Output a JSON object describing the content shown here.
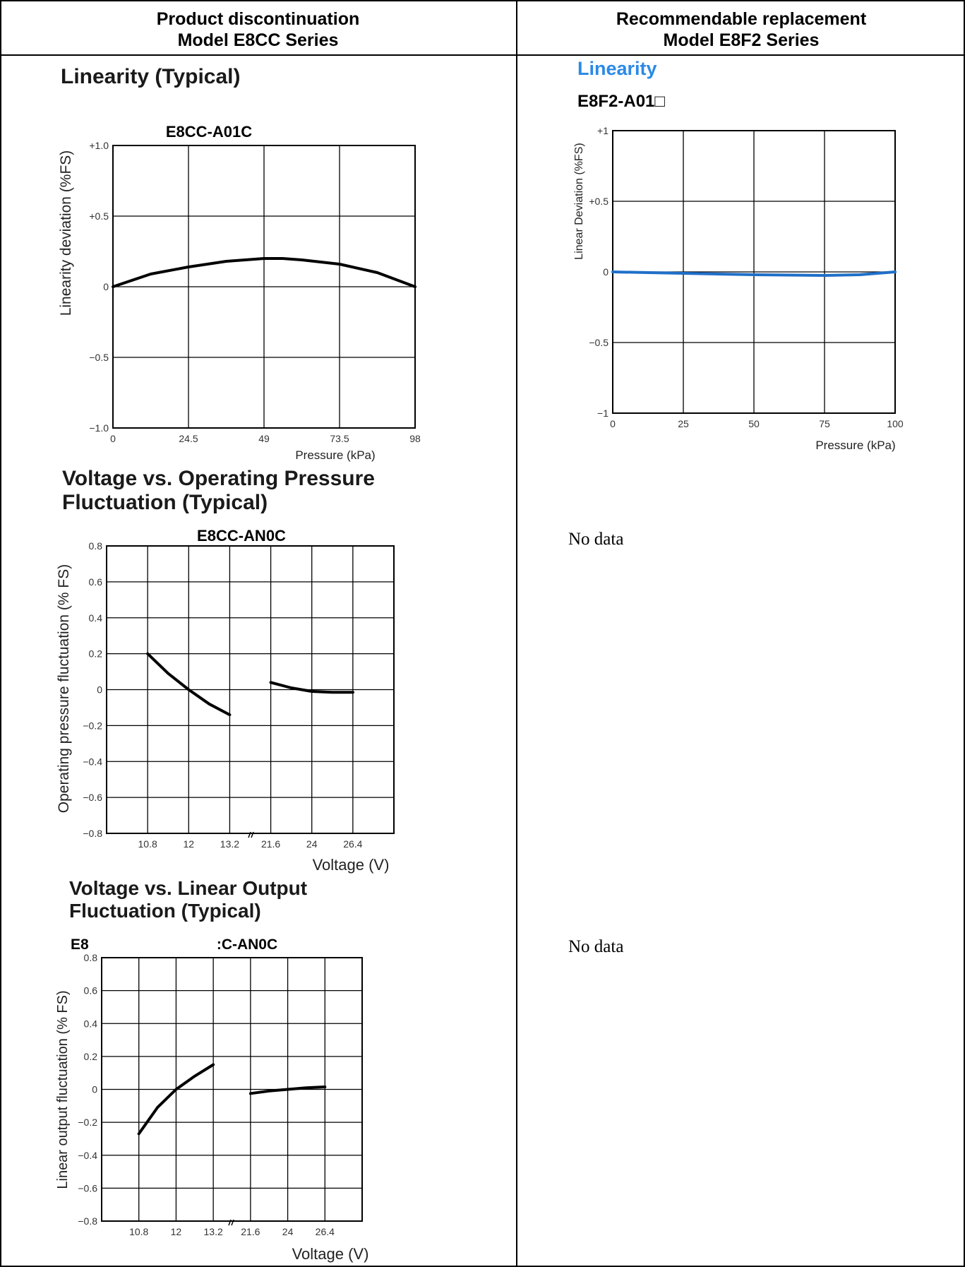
{
  "header": {
    "left_line1": "Product discontinuation",
    "left_line2": "Model E8CC Series",
    "right_line1": "Recommendable replacement",
    "right_line2": "Model E8F2 Series"
  },
  "left": {
    "linearity_title": "Linearity (Typical)",
    "voltage_pressure_title_1": "Voltage vs. Operating Pressure",
    "voltage_pressure_title_2": "Fluctuation (Typical)",
    "voltage_output_title_1": "Voltage vs. Linear Output",
    "voltage_output_title_2": "Fluctuation (Typical)"
  },
  "right": {
    "linearity_title": "Linearity",
    "model": "E8F2-A01□",
    "no_data_1": "No data",
    "no_data_2": "No data"
  },
  "colors": {
    "accent_blue": "#2b8ae6",
    "line_blue": "#1f6fc8"
  },
  "chart_data": [
    {
      "id": "e8cc-linearity",
      "type": "line",
      "title": "E8CC-A01C",
      "xlabel": "Pressure (kPa)",
      "ylabel": "Linearity deviation (%FS)",
      "xlim": [
        0,
        98
      ],
      "ylim": [
        -1.0,
        1.0
      ],
      "x_ticks": [
        "0",
        "24.5",
        "49",
        "73.5",
        "98"
      ],
      "y_ticks": [
        "+1.0",
        "+0.5",
        "0",
        "−0.5",
        "−1.0"
      ],
      "grid": true,
      "series": [
        {
          "x": [
            0,
            12.25,
            24.5,
            36.75,
            49,
            55,
            61.25,
            73.5,
            85.75,
            98
          ],
          "values": [
            0,
            0.09,
            0.14,
            0.18,
            0.2,
            0.2,
            0.19,
            0.16,
            0.1,
            0
          ]
        }
      ]
    },
    {
      "id": "e8f2-linearity",
      "type": "line",
      "title": "",
      "xlabel": "Pressure (kPa)",
      "ylabel": "Linear Deviation (%FS)",
      "xlim": [
        0,
        100
      ],
      "ylim": [
        -1,
        1
      ],
      "x_ticks": [
        "0",
        "25",
        "50",
        "75",
        "100"
      ],
      "y_ticks": [
        "+1",
        "+0.5",
        "0",
        "−0.5",
        "−1"
      ],
      "grid": true,
      "series": [
        {
          "x": [
            0,
            25,
            50,
            75,
            87.5,
            100
          ],
          "values": [
            0,
            -0.01,
            -0.02,
            -0.025,
            -0.02,
            0
          ]
        }
      ]
    },
    {
      "id": "e8cc-voltage-pressure",
      "type": "line",
      "title": "E8CC-AN0C",
      "xlabel": "Voltage (V)",
      "ylabel": "Operating pressure fluctuation (% FS)",
      "x_categories": [
        "10.8",
        "12",
        "13.2",
        "21.6",
        "24",
        "26.4"
      ],
      "ylim": [
        -0.8,
        0.8
      ],
      "y_ticks": [
        "0.8",
        "0.6",
        "0.4",
        "0.2",
        "0",
        "−0.2",
        "−0.4",
        "−0.6",
        "−0.8"
      ],
      "grid": true,
      "series": [
        {
          "x": [
            10.8,
            11.4,
            12,
            12.6,
            13.2
          ],
          "values": [
            0.2,
            0.09,
            0,
            -0.08,
            -0.14
          ]
        },
        {
          "x": [
            21.6,
            22.8,
            24,
            25.2,
            26.4
          ],
          "values": [
            0.04,
            0.01,
            -0.01,
            -0.015,
            -0.015
          ]
        }
      ]
    },
    {
      "id": "e8cc-voltage-output",
      "type": "line",
      "title_left": "E8",
      "title_right": ":C-AN0C",
      "xlabel": "Voltage (V)",
      "ylabel": "Linear output fluctuation (% FS)",
      "x_categories": [
        "10.8",
        "12",
        "13.2",
        "21.6",
        "24",
        "26.4"
      ],
      "ylim": [
        -0.8,
        0.8
      ],
      "y_ticks": [
        "0.8",
        "0.6",
        "0.4",
        "0.2",
        "0",
        "−0.2",
        "−0.4",
        "−0.6",
        "−0.8"
      ],
      "grid": true,
      "series": [
        {
          "x": [
            10.8,
            11.4,
            12,
            12.6,
            13.2
          ],
          "values": [
            -0.27,
            -0.11,
            0,
            0.08,
            0.15
          ]
        },
        {
          "x": [
            21.6,
            22.8,
            24,
            25.2,
            26.4
          ],
          "values": [
            -0.025,
            -0.01,
            0,
            0.01,
            0.015
          ]
        }
      ]
    }
  ]
}
